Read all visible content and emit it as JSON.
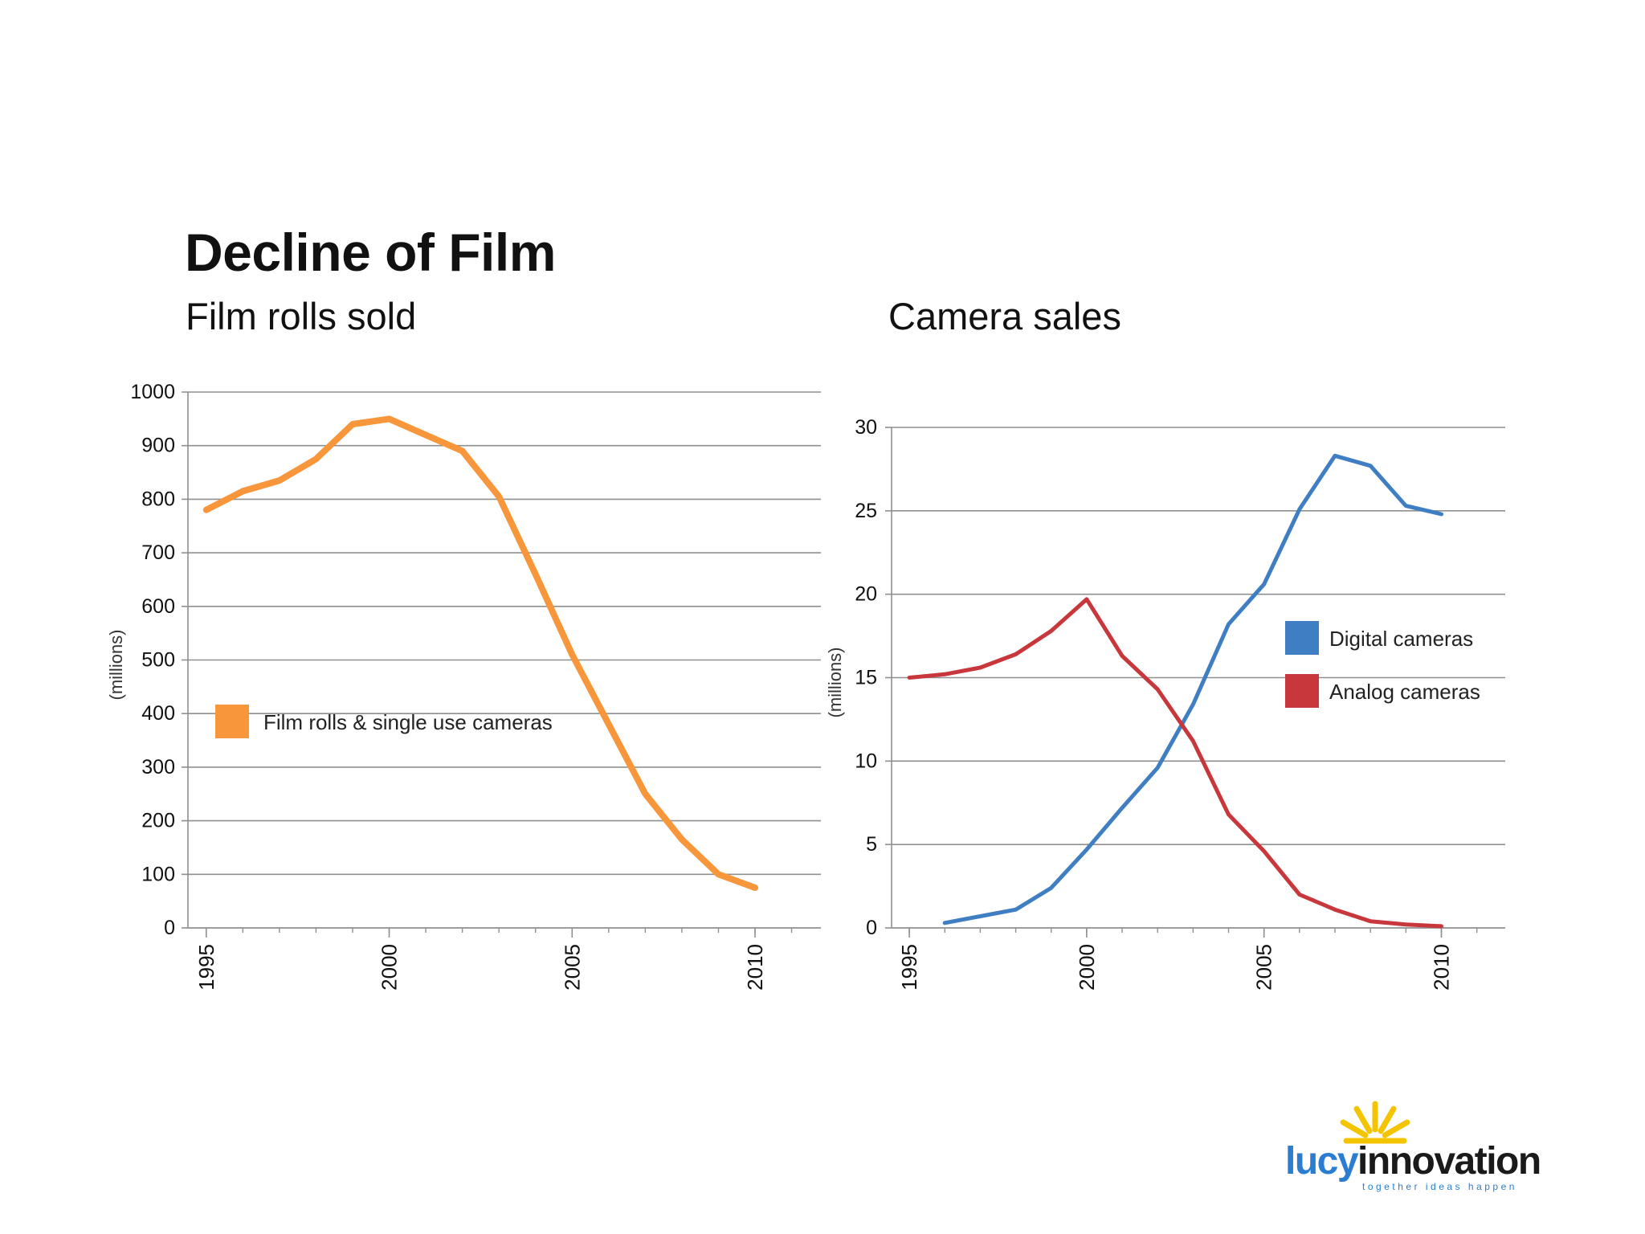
{
  "page": {
    "title": "Decline of Film"
  },
  "logo": {
    "brand_part1": "lucy",
    "brand_part2": "innovation",
    "tagline": "together ideas happen",
    "colors": {
      "lucy": "#2a7dd0",
      "innovation": "#1a1a1a",
      "sun": "#f5c400"
    }
  },
  "chart_data": [
    {
      "id": "film",
      "type": "line",
      "title": "Film rolls sold",
      "ylabel": "(millions)",
      "xlabel": "",
      "ylim": [
        0,
        1000
      ],
      "xlim": [
        1994.5,
        2011.8
      ],
      "yticks": [
        0,
        100,
        200,
        300,
        400,
        500,
        600,
        700,
        800,
        900,
        1000
      ],
      "xticks": [
        1995,
        2000,
        2005,
        2010
      ],
      "grid": true,
      "legend_position": "left-middle",
      "series": [
        {
          "name": "Film rolls & single use cameras",
          "color": "#f7963a",
          "x": [
            1995,
            1996,
            1997,
            1998,
            1999,
            2000,
            2001,
            2002,
            2003,
            2004,
            2005,
            2006,
            2007,
            2008,
            2009,
            2010
          ],
          "y": [
            780,
            815,
            835,
            875,
            940,
            950,
            920,
            890,
            805,
            660,
            510,
            380,
            250,
            165,
            100,
            75
          ]
        }
      ]
    },
    {
      "id": "cameras",
      "type": "line",
      "title": "Camera sales",
      "ylabel": "(millions)",
      "xlabel": "",
      "ylim": [
        0,
        30
      ],
      "xlim": [
        1994.5,
        2011.8
      ],
      "yticks": [
        0,
        5,
        10,
        15,
        20,
        25,
        30
      ],
      "xticks": [
        1995,
        2000,
        2005,
        2010
      ],
      "grid": true,
      "legend_position": "right-middle",
      "series": [
        {
          "name": "Digital cameras",
          "color": "#3f7ec3",
          "x": [
            1996,
            1997,
            1998,
            1999,
            2000,
            2001,
            2002,
            2003,
            2004,
            2005,
            2006,
            2007,
            2008,
            2009,
            2010
          ],
          "y": [
            0.3,
            0.7,
            1.1,
            2.4,
            4.7,
            7.2,
            9.6,
            13.4,
            18.2,
            20.6,
            25.1,
            28.3,
            27.7,
            25.3,
            24.8
          ]
        },
        {
          "name": "Analog cameras",
          "color": "#c8373b",
          "x": [
            1995,
            1996,
            1997,
            1998,
            1999,
            2000,
            2001,
            2002,
            2003,
            2004,
            2005,
            2006,
            2007,
            2008,
            2009,
            2010
          ],
          "y": [
            15.0,
            15.2,
            15.6,
            16.4,
            17.8,
            19.7,
            16.3,
            14.3,
            11.2,
            6.8,
            4.6,
            2.0,
            1.1,
            0.4,
            0.2,
            0.1
          ]
        }
      ]
    }
  ]
}
